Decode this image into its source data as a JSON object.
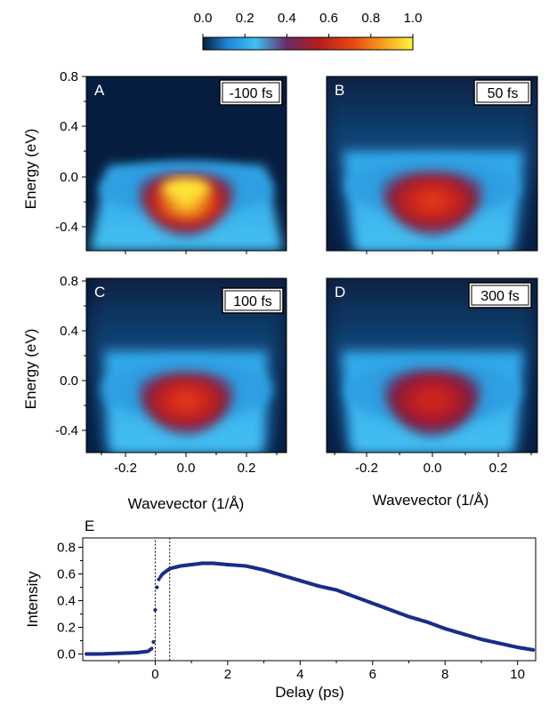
{
  "colorbar": {
    "ticks": [
      "0.0",
      "0.2",
      "0.4",
      "0.6",
      "0.8",
      "1.0"
    ],
    "stops": [
      "#0a1e40",
      "#1e88d8",
      "#3fc0f0",
      "#6a2a6a",
      "#b41c1c",
      "#e84a10",
      "#f7a020",
      "#fff53a"
    ]
  },
  "chart_data": [
    {
      "type": "heatmap",
      "panel": "A",
      "delay_label": "-100 fs",
      "ylabel": "Energy (eV)",
      "xlabel": "",
      "xlim": [
        -0.35,
        0.35
      ],
      "ylim": [
        -0.6,
        0.8
      ],
      "y_ticks": [
        "0.8",
        "0.4",
        "0.0",
        "-0.4"
      ],
      "peak_intensity": 1.0
    },
    {
      "type": "heatmap",
      "panel": "B",
      "delay_label": "50 fs",
      "xlabel": "",
      "xlim": [
        -0.35,
        0.35
      ],
      "ylim": [
        -0.6,
        0.8
      ],
      "peak_intensity": 0.75
    },
    {
      "type": "heatmap",
      "panel": "C",
      "delay_label": "100 fs",
      "ylabel": "Energy (eV)",
      "xlabel": "Wavevector (1/Å)",
      "xlim": [
        -0.35,
        0.35
      ],
      "ylim": [
        -0.6,
        0.8
      ],
      "x_ticks": [
        "-0.2",
        "0.0",
        "0.2"
      ],
      "y_ticks": [
        "0.8",
        "0.4",
        "0.0",
        "-0.4"
      ],
      "peak_intensity": 0.75
    },
    {
      "type": "heatmap",
      "panel": "D",
      "delay_label": "300 fs",
      "xlabel": "Wavevector (1/Å)",
      "xlim": [
        -0.35,
        0.35
      ],
      "ylim": [
        -0.6,
        0.8
      ],
      "x_ticks": [
        "-0.2",
        "0.0",
        "0.2"
      ],
      "peak_intensity": 0.72
    },
    {
      "type": "scatter",
      "panel": "E",
      "xlabel": "Delay (ps)",
      "ylabel": "Intensity",
      "xlim": [
        -2.0,
        10.5
      ],
      "ylim": [
        -0.05,
        0.87
      ],
      "x_ticks": [
        "0",
        "2",
        "4",
        "6",
        "8",
        "10"
      ],
      "y_ticks": [
        "0.8",
        "0.6",
        "0.4",
        "0.2",
        "0.0"
      ],
      "series": [
        {
          "x": [
            -1.9,
            -1.5,
            -1.0,
            -0.5,
            -0.2,
            -0.1,
            -0.05,
            0.0,
            0.05,
            0.1,
            0.2,
            0.4,
            0.7,
            1.0,
            1.3,
            1.6,
            2.0,
            2.5,
            3.0,
            3.5,
            4.0,
            4.5,
            5.0,
            5.5,
            6.0,
            6.5,
            7.0,
            7.5,
            8.0,
            8.5,
            9.0,
            9.5,
            10.0,
            10.45
          ],
          "y": [
            0.0,
            0.0,
            0.005,
            0.01,
            0.02,
            0.04,
            0.09,
            0.33,
            0.5,
            0.56,
            0.6,
            0.64,
            0.66,
            0.67,
            0.68,
            0.68,
            0.67,
            0.66,
            0.63,
            0.59,
            0.55,
            0.51,
            0.48,
            0.43,
            0.38,
            0.33,
            0.28,
            0.24,
            0.19,
            0.15,
            0.11,
            0.08,
            0.05,
            0.03
          ]
        }
      ],
      "window_box": [
        0.0,
        0.4
      ]
    }
  ]
}
